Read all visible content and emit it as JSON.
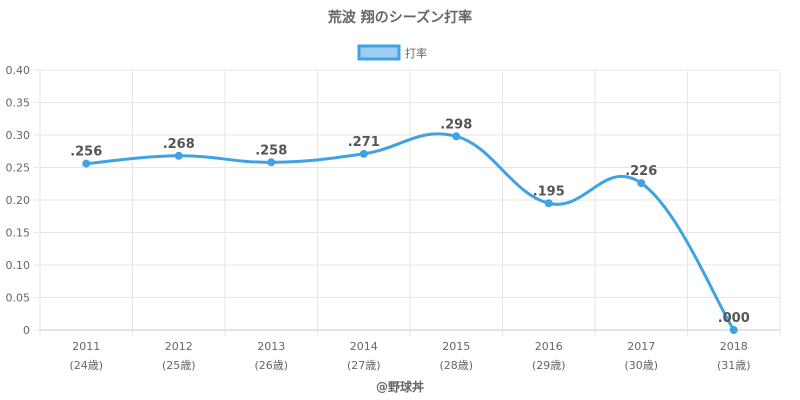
{
  "chart_data": {
    "type": "line",
    "title": "荒波 翔のシーズン打率",
    "categories": [
      "2011",
      "2012",
      "2013",
      "2014",
      "2015",
      "2016",
      "2017",
      "2018"
    ],
    "sub_categories": [
      "(24歳)",
      "(25歳)",
      "(26歳)",
      "(27歳)",
      "(28歳)",
      "(29歳)",
      "(30歳)",
      "(31歳)"
    ],
    "series": [
      {
        "name": "打率",
        "values": [
          0.256,
          0.268,
          0.258,
          0.271,
          0.298,
          0.195,
          0.226,
          0.0
        ],
        "labels": [
          ".256",
          ".268",
          ".258",
          ".271",
          ".298",
          ".195",
          ".226",
          ".000"
        ]
      }
    ],
    "ylim": [
      0,
      0.4
    ],
    "yticks": [
      "0",
      "0.05",
      "0.10",
      "0.15",
      "0.20",
      "0.25",
      "0.30",
      "0.35",
      "0.40"
    ],
    "grid": true,
    "legend_position": "top-center",
    "xlabel": "",
    "ylabel": "",
    "credit": "@野球丼",
    "colors": {
      "line": "#3fa2e4",
      "legend_fill": "#9dcdf1",
      "grid": "#e6e6e6",
      "axis": "#c8c8c8",
      "text": "#666666"
    }
  }
}
